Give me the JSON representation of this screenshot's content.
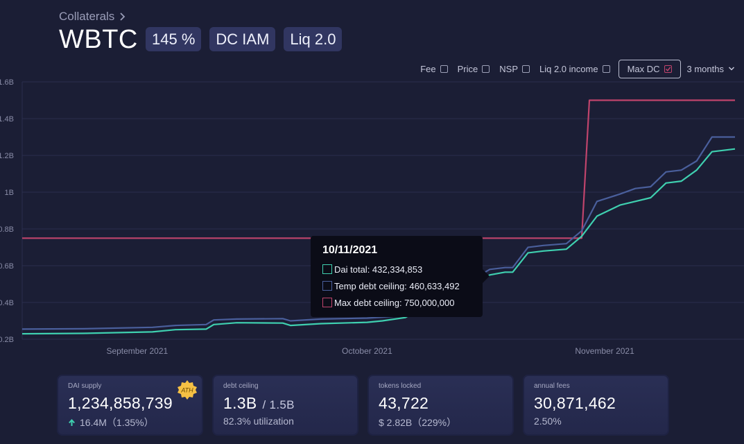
{
  "breadcrumb": {
    "label": "Collaterals"
  },
  "header": {
    "title": "WBTC",
    "badges": [
      "145 %",
      "DC IAM",
      "Liq 2.0"
    ]
  },
  "controls": {
    "toggles": [
      {
        "label": "Fee",
        "checked": false
      },
      {
        "label": "Price",
        "checked": false
      },
      {
        "label": "NSP",
        "checked": false
      },
      {
        "label": "Liq 2.0 income",
        "checked": false
      },
      {
        "label": "Max DC",
        "checked": true
      }
    ],
    "range": "3 months"
  },
  "tooltip": {
    "date": "10/11/2021",
    "rows": [
      {
        "label": "Dai total: 432,334,853",
        "color": "#3fd0b0"
      },
      {
        "label": "Temp debt ceiling: 460,633,492",
        "color": "#4a5f9c"
      },
      {
        "label": "Max debt ceiling: 750,000,000",
        "color": "#c0446c"
      }
    ]
  },
  "cards": [
    {
      "label": "DAI supply",
      "value": "1,234,858,739",
      "sub": "16.4M（1.35%）",
      "arrow": true,
      "ath": "ATH"
    },
    {
      "label": "debt ceiling",
      "value": "1.3B",
      "suffix": "/ 1.5B",
      "sub": "82.3% utilization"
    },
    {
      "label": "tokens locked",
      "value": "43,722",
      "sub": "$ 2.82B（229%）"
    },
    {
      "label": "annual fees",
      "value": "30,871,462",
      "sub": "2.50%"
    }
  ],
  "chart_data": {
    "type": "line",
    "y_unit": "B",
    "ylim": [
      0.2,
      1.6
    ],
    "y_ticks": [
      0.2,
      0.4,
      0.6,
      0.8,
      1.0,
      1.2,
      1.4,
      1.6
    ],
    "y_tick_labels": [
      "0.2B",
      "0.4B",
      "0.6B",
      "0.8B",
      "1B",
      "1.2B",
      "1.4B",
      "1.6B"
    ],
    "x_range": [
      "2021-08-17",
      "2021-11-18"
    ],
    "x_ticks": [
      {
        "date": "2021-09-01",
        "label": "September 2021"
      },
      {
        "date": "2021-10-01",
        "label": "October 2021"
      },
      {
        "date": "2021-11-01",
        "label": "November 2021"
      }
    ],
    "grid": true,
    "colors": {
      "dai_total": "#3fd0b0",
      "temp_debt_ceiling": "#4a5f9c",
      "max_debt_ceiling": "#c0446c"
    },
    "series": [
      {
        "name": "Dai total",
        "points": [
          [
            "2021-08-17",
            0.23
          ],
          [
            "2021-08-25",
            0.232
          ],
          [
            "2021-09-03",
            0.24
          ],
          [
            "2021-09-06",
            0.252
          ],
          [
            "2021-09-10",
            0.255
          ],
          [
            "2021-09-11",
            0.28
          ],
          [
            "2021-09-14",
            0.29
          ],
          [
            "2021-09-20",
            0.288
          ],
          [
            "2021-09-21",
            0.275
          ],
          [
            "2021-09-25",
            0.285
          ],
          [
            "2021-10-01",
            0.292
          ],
          [
            "2021-10-03",
            0.3
          ],
          [
            "2021-10-06",
            0.318
          ],
          [
            "2021-10-11",
            0.4323
          ],
          [
            "2021-10-15",
            0.5
          ],
          [
            "2021-10-17",
            0.55
          ],
          [
            "2021-10-19",
            0.565
          ],
          [
            "2021-10-20",
            0.565
          ],
          [
            "2021-10-22",
            0.67
          ],
          [
            "2021-10-24",
            0.68
          ],
          [
            "2021-10-27",
            0.69
          ],
          [
            "2021-10-29",
            0.76
          ],
          [
            "2021-10-31",
            0.87
          ],
          [
            "2021-11-03",
            0.93
          ],
          [
            "2021-11-05",
            0.95
          ],
          [
            "2021-11-07",
            0.97
          ],
          [
            "2021-11-09",
            1.05
          ],
          [
            "2021-11-11",
            1.06
          ],
          [
            "2021-11-13",
            1.12
          ],
          [
            "2021-11-15",
            1.22
          ],
          [
            "2021-11-18",
            1.235
          ]
        ]
      },
      {
        "name": "Temp debt ceiling",
        "points": [
          [
            "2021-08-17",
            0.255
          ],
          [
            "2021-08-25",
            0.257
          ],
          [
            "2021-09-03",
            0.265
          ],
          [
            "2021-09-06",
            0.275
          ],
          [
            "2021-09-10",
            0.28
          ],
          [
            "2021-09-11",
            0.305
          ],
          [
            "2021-09-14",
            0.31
          ],
          [
            "2021-09-20",
            0.312
          ],
          [
            "2021-09-21",
            0.3
          ],
          [
            "2021-09-25",
            0.31
          ],
          [
            "2021-10-01",
            0.315
          ],
          [
            "2021-10-03",
            0.32
          ],
          [
            "2021-10-06",
            0.33
          ],
          [
            "2021-10-11",
            0.4606
          ],
          [
            "2021-10-15",
            0.53
          ],
          [
            "2021-10-17",
            0.58
          ],
          [
            "2021-10-19",
            0.59
          ],
          [
            "2021-10-20",
            0.59
          ],
          [
            "2021-10-22",
            0.7
          ],
          [
            "2021-10-24",
            0.71
          ],
          [
            "2021-10-27",
            0.72
          ],
          [
            "2021-10-29",
            0.79
          ],
          [
            "2021-10-31",
            0.95
          ],
          [
            "2021-11-03",
            0.99
          ],
          [
            "2021-11-05",
            1.02
          ],
          [
            "2021-11-07",
            1.03
          ],
          [
            "2021-11-09",
            1.11
          ],
          [
            "2021-11-11",
            1.12
          ],
          [
            "2021-11-13",
            1.17
          ],
          [
            "2021-11-15",
            1.3
          ],
          [
            "2021-11-18",
            1.3
          ]
        ]
      },
      {
        "name": "Max debt ceiling",
        "points": [
          [
            "2021-08-17",
            0.75
          ],
          [
            "2021-10-29",
            0.75
          ],
          [
            "2021-10-30",
            1.5
          ],
          [
            "2021-11-18",
            1.5
          ]
        ]
      }
    ]
  }
}
